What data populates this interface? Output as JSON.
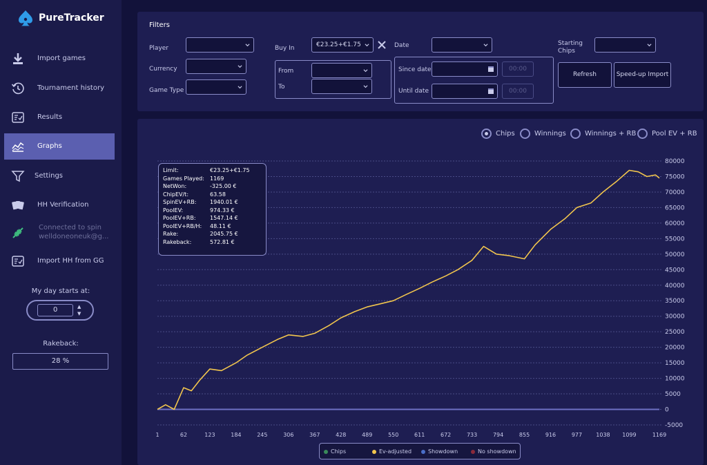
{
  "app": {
    "name": "PureTracker"
  },
  "sidebar": {
    "items": [
      {
        "label": "Import games",
        "icon": "import-icon"
      },
      {
        "label": "Tournament history",
        "icon": "history-icon"
      },
      {
        "label": "Results",
        "icon": "results-icon"
      },
      {
        "label": "Graphs",
        "icon": "graphs-icon",
        "active": true
      },
      {
        "label": "Settings",
        "icon": "filter-icon"
      },
      {
        "label": "HH Verification",
        "icon": "cards-icon"
      },
      {
        "label": "Connected to spin",
        "label2": "welldoneoneuk@g...",
        "icon": "plug-icon"
      },
      {
        "label": "Import HH from GG",
        "icon": "import-hh-icon"
      }
    ],
    "day_start_label": "My day starts at:",
    "day_start_value": "0",
    "rakeback_label": "Rakeback:",
    "rakeback_value": "28 %"
  },
  "filters": {
    "title": "Filters",
    "player_label": "Player",
    "currency_label": "Currency",
    "game_type_label": "Game Type",
    "buy_in_label": "Buy In",
    "buy_in_value": "€23.25+€1.75",
    "from_label": "From",
    "to_label": "To",
    "date_label": "Date",
    "since_date_label": "Since date",
    "until_date_label": "Until date",
    "time_placeholder": "00:00",
    "starting_chips_label": "Starting Chips",
    "refresh_label": "Refresh",
    "speedup_label": "Speed-up Import"
  },
  "graph": {
    "radios": [
      {
        "label": "Chips",
        "selected": true
      },
      {
        "label": "Winnings",
        "selected": false
      },
      {
        "label": "Winnings + RB",
        "selected": false
      },
      {
        "label": "Pool EV + RB",
        "selected": false
      }
    ],
    "stats": [
      {
        "k": "Limit:",
        "v": "€23.25+€1.75"
      },
      {
        "k": "Games Played:",
        "v": "1169"
      },
      {
        "k": "NetWon:",
        "v": "-325.00 €"
      },
      {
        "k": "ChipEV/t:",
        "v": "63.58"
      },
      {
        "k": "SpinEV+RB:",
        "v": "1940.01 €"
      },
      {
        "k": "PoolEV:",
        "v": "974.33 €"
      },
      {
        "k": "PoolEV+RB:",
        "v": "1547.14 €"
      },
      {
        "k": "PoolEV+RB/H:",
        "v": "48.11 €"
      },
      {
        "k": "Rake:",
        "v": "2045.75 €"
      },
      {
        "k": "Rakeback:",
        "v": "572.81 €"
      }
    ],
    "legend": [
      {
        "label": "Chips",
        "color": "#3a8a5a"
      },
      {
        "label": "Ev-adjusted",
        "color": "#f2c64d"
      },
      {
        "label": "Showdown",
        "color": "#4a6ec8"
      },
      {
        "label": "No showdown",
        "color": "#8a2a3a"
      }
    ]
  },
  "chart_data": {
    "type": "line",
    "x_ticks": [
      "1",
      "62",
      "123",
      "184",
      "245",
      "306",
      "367",
      "428",
      "489",
      "550",
      "611",
      "672",
      "733",
      "794",
      "855",
      "916",
      "977",
      "1038",
      "1099",
      "1169"
    ],
    "y_ticks": [
      "80000",
      "75000",
      "70000",
      "65000",
      "60000",
      "55000",
      "50000",
      "45000",
      "40000",
      "35000",
      "30000",
      "25000",
      "20000",
      "15000",
      "10000",
      "5000",
      "0",
      "-5000"
    ],
    "xlim": [
      1,
      1169
    ],
    "ylim": [
      -5000,
      80000
    ],
    "series": [
      {
        "color": "#f2c64d",
        "x": [
          1,
          20,
          40,
          62,
          80,
          100,
          123,
          150,
          184,
          210,
          245,
          280,
          306,
          340,
          367,
          400,
          428,
          460,
          489,
          520,
          550,
          580,
          611,
          640,
          672,
          700,
          733,
          760,
          790,
          820,
          855,
          880,
          916,
          950,
          977,
          1010,
          1038,
          1070,
          1099,
          1120,
          1140,
          1160,
          1169
        ],
        "y": [
          0,
          1500,
          0,
          7000,
          6000,
          9500,
          13000,
          12500,
          15000,
          17500,
          20000,
          22500,
          24000,
          23500,
          24500,
          27000,
          29500,
          31500,
          33000,
          34000,
          35000,
          37000,
          39000,
          41000,
          43000,
          45000,
          48000,
          52500,
          50000,
          49500,
          48500,
          53000,
          58000,
          61500,
          65000,
          66500,
          70000,
          73500,
          77000,
          76500,
          75000,
          75500,
          74500
        ]
      },
      {
        "color": "#6d70c4",
        "x": [
          1,
          1169
        ],
        "y": [
          0,
          0
        ]
      }
    ]
  }
}
